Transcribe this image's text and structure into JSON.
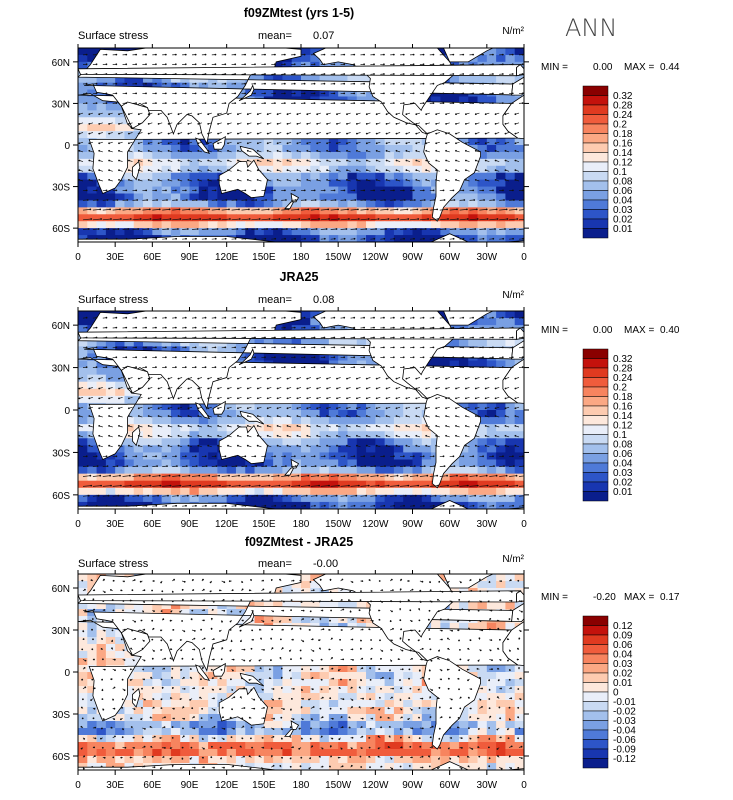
{
  "figure": {
    "season_label": "ANN",
    "colors": {
      "land": "#ffffff",
      "coast": "#000000",
      "vector": "#111111"
    }
  },
  "chart_data": [
    {
      "type": "heatmap",
      "subtype": "lat-lon map with wind-stress vectors",
      "title": "f09ZMtest (yrs 1-5)",
      "left_label": "Surface stress",
      "mean_label": "mean=",
      "mean_value": "0.07",
      "units": "N/m²",
      "min_label": "MIN =",
      "min_value": "0.00",
      "max_label": "MAX =",
      "max_value": "0.44",
      "x_tick_labels": [
        "0",
        "30E",
        "60E",
        "90E",
        "120E",
        "150E",
        "180",
        "150W",
        "120W",
        "90W",
        "60W",
        "30W",
        "0"
      ],
      "y_tick_labels": [
        "60N",
        "30N",
        "0",
        "30S",
        "60S"
      ],
      "xlim": [
        0,
        360
      ],
      "ylim": [
        -70,
        70
      ],
      "colorbar_levels": [
        "0.32",
        "0.28",
        "0.24",
        "0.2",
        "0.18",
        "0.16",
        "0.14",
        "0.12",
        "0.1",
        "0.08",
        "0.06",
        "0.04",
        "0.03",
        "0.02",
        "0.01"
      ],
      "colorbar_colors": [
        "#8a0000",
        "#c4120c",
        "#e03a20",
        "#f05c3c",
        "#f7845f",
        "#fba884",
        "#fdcbb0",
        "#fde8dc",
        "#e9eef9",
        "#c9daf3",
        "#a3c0ec",
        "#7aa0e3",
        "#4f7ad8",
        "#2d55c8",
        "#1836b0",
        "#0a1e8c"
      ],
      "field": "full"
    },
    {
      "type": "heatmap",
      "subtype": "lat-lon map with wind-stress vectors",
      "title": "JRA25",
      "left_label": "Surface stress",
      "mean_label": "mean=",
      "mean_value": "0.08",
      "units": "N/m²",
      "min_label": "MIN =",
      "min_value": "0.00",
      "max_label": "MAX =",
      "max_value": "0.40",
      "x_tick_labels": [
        "0",
        "30E",
        "60E",
        "90E",
        "120E",
        "150E",
        "180",
        "150W",
        "120W",
        "90W",
        "60W",
        "30W",
        "0"
      ],
      "y_tick_labels": [
        "60N",
        "30N",
        "0",
        "30S",
        "60S"
      ],
      "xlim": [
        0,
        360
      ],
      "ylim": [
        -70,
        70
      ],
      "colorbar_levels": [
        "0.32",
        "0.28",
        "0.24",
        "0.2",
        "0.18",
        "0.16",
        "0.14",
        "0.12",
        "0.1",
        "0.08",
        "0.06",
        "0.04",
        "0.03",
        "0.02",
        "0.01"
      ],
      "colorbar_colors": [
        "#8a0000",
        "#c4120c",
        "#e03a20",
        "#f05c3c",
        "#f7845f",
        "#fba884",
        "#fdcbb0",
        "#fde8dc",
        "#e9eef9",
        "#c9daf3",
        "#a3c0ec",
        "#7aa0e3",
        "#4f7ad8",
        "#2d55c8",
        "#1836b0",
        "#0a1e8c"
      ],
      "field": "full"
    },
    {
      "type": "heatmap",
      "subtype": "lat-lon difference map with wind-stress vectors",
      "title": "f09ZMtest - JRA25",
      "left_label": "Surface stress",
      "mean_label": "mean=",
      "mean_value": "-0.00",
      "units": "N/m²",
      "min_label": "MIN =",
      "min_value": "-0.20",
      "max_label": "MAX =",
      "max_value": "0.17",
      "x_tick_labels": [
        "0",
        "30E",
        "60E",
        "90E",
        "120E",
        "150E",
        "180",
        "150W",
        "120W",
        "90W",
        "60W",
        "30W",
        "0"
      ],
      "y_tick_labels": [
        "60N",
        "30N",
        "0",
        "30S",
        "60S"
      ],
      "xlim": [
        0,
        360
      ],
      "ylim": [
        -70,
        70
      ],
      "colorbar_levels": [
        "0.12",
        "0.09",
        "0.06",
        "0.04",
        "0.03",
        "0.02",
        "0.01",
        "0",
        "-0.01",
        "-0.02",
        "-0.03",
        "-0.04",
        "-0.06",
        "-0.09",
        "-0.12"
      ],
      "colorbar_colors": [
        "#8a0000",
        "#c4120c",
        "#e03a20",
        "#f05c3c",
        "#f7845f",
        "#fba884",
        "#fdcbb0",
        "#fde8dc",
        "#e9eef9",
        "#c9daf3",
        "#a3c0ec",
        "#7aa0e3",
        "#4f7ad8",
        "#2d55c8",
        "#1836b0",
        "#0a1e8c"
      ],
      "field": "diff"
    }
  ]
}
